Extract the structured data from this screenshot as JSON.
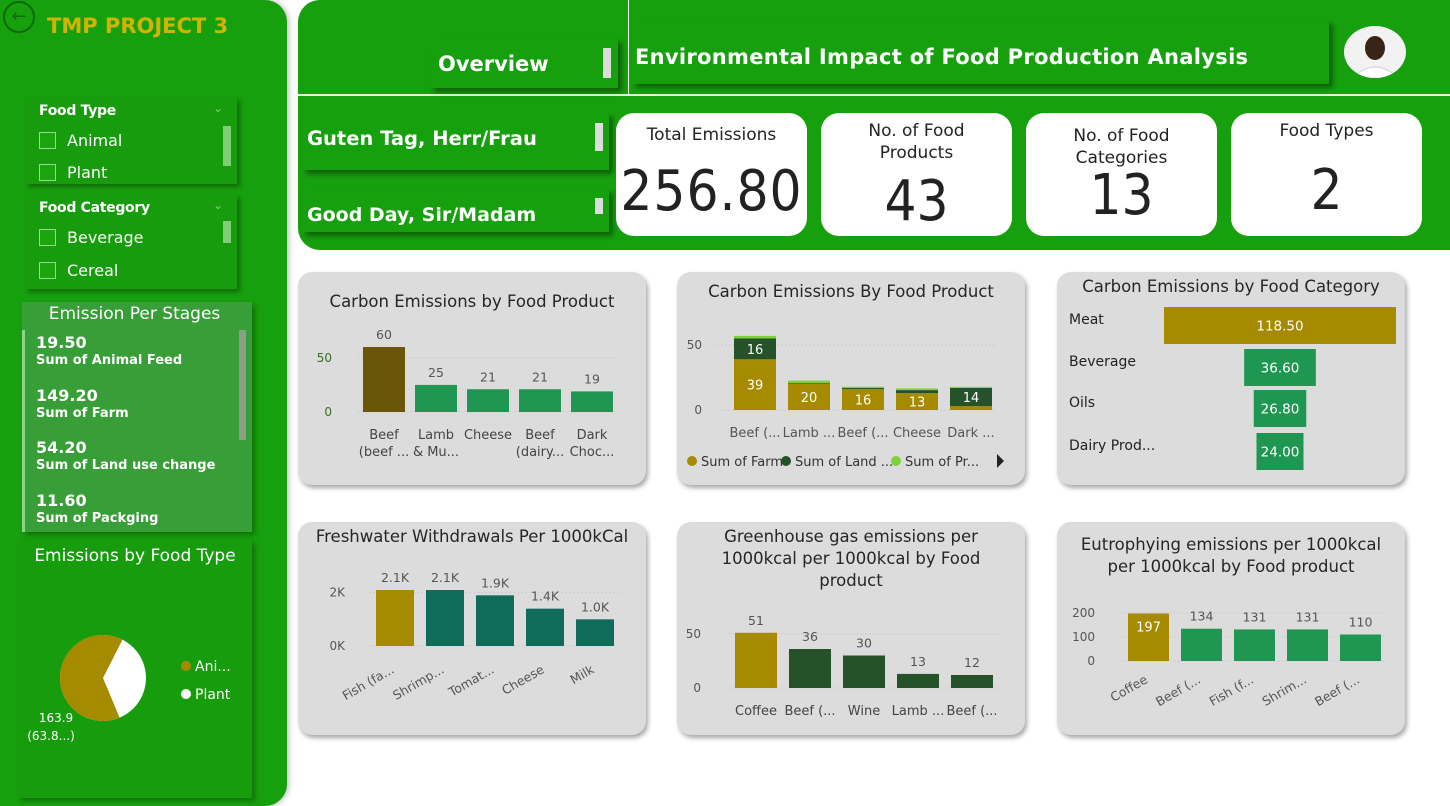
{
  "sidebar": {
    "project_title": "TMP PROJECT 3",
    "back_icon": "back-arrow-icon",
    "food_type_slicer": {
      "title": "Food Type",
      "options": [
        "Animal",
        "Plant"
      ]
    },
    "food_category_slicer": {
      "title": "Food Category",
      "options": [
        "Beverage",
        "Cereal"
      ]
    },
    "stages": {
      "title": "Emission Per Stages",
      "items": [
        {
          "value": "19.50",
          "label": "Sum of Animal Feed"
        },
        {
          "value": "149.20",
          "label": "Sum of Farm"
        },
        {
          "value": "54.20",
          "label": "Sum of Land use change"
        },
        {
          "value": "11.60",
          "label": "Sum of Packging"
        }
      ]
    },
    "pie": {
      "title": "Emissions by Food Type",
      "legend": [
        "Ani...",
        "Plant"
      ],
      "label_value": "163.9",
      "label_pct": "(63.8...)",
      "animal_fraction": 0.638
    }
  },
  "header": {
    "overview": "Overview",
    "title": "Environmental Impact of Food Production Analysis",
    "greeting_de": "Guten Tag, Herr/Frau",
    "greeting_en": "Good Day, Sir/Madam"
  },
  "kpis": [
    {
      "label": "Total Emissions",
      "value": "256.80"
    },
    {
      "label": "No. of Food Products",
      "value": "43"
    },
    {
      "label": "No. of Food Categories",
      "value": "13"
    },
    {
      "label": "Food Types",
      "value": "2"
    }
  ],
  "colors": {
    "brand_green": "#17a00e",
    "gold": "#a68a00",
    "dark_green": "#26522a",
    "teal": "#0f6b5a",
    "mid_green": "#1f9651",
    "brown": "#6b5507",
    "lime": "#7fd13a"
  },
  "chart_data": [
    {
      "type": "bar",
      "title": "Carbon Emissions by Food Product",
      "categories": [
        [
          "Beef",
          "(beef ..."
        ],
        [
          "Lamb",
          "& Mu..."
        ],
        [
          "Cheese"
        ],
        [
          "Beef",
          "(dairy..."
        ],
        [
          "Dark",
          "Choc..."
        ]
      ],
      "values": [
        60,
        25,
        21,
        21,
        19
      ],
      "yticks": [
        "0",
        "50"
      ],
      "ylim": [
        0,
        60
      ]
    },
    {
      "type": "bar",
      "stacked": true,
      "title": "Carbon Emissions By Food Product",
      "categories": [
        "Beef (...",
        "Lamb ...",
        "Beef (...",
        "Cheese",
        "Dark ..."
      ],
      "series": [
        {
          "name": "Sum of Farm",
          "values": [
            39,
            20,
            16,
            13,
            3
          ]
        },
        {
          "name": "Sum of Land ...",
          "values": [
            16,
            0.6,
            0.9,
            2.3,
            14
          ]
        },
        {
          "name": "Sum of Pr...",
          "values": [
            2,
            2,
            1,
            1.3,
            0.8
          ]
        }
      ],
      "segment_labels": [
        [
          "39",
          "16",
          ""
        ],
        [
          "20",
          "",
          ""
        ],
        [
          "16",
          "",
          ""
        ],
        [
          "13",
          "",
          ""
        ],
        [
          "",
          "14",
          ""
        ]
      ],
      "yticks": [
        "0",
        "50"
      ],
      "ylim": [
        0,
        60
      ]
    },
    {
      "type": "bar",
      "orientation": "horizontal-funnel",
      "title": "Carbon Emissions by Food Category",
      "categories": [
        "Meat",
        "Beverage",
        "Oils",
        "Dairy Prod..."
      ],
      "values": [
        118.5,
        36.6,
        26.8,
        24.0
      ],
      "value_labels": [
        "118.50",
        "36.60",
        "26.80",
        "24.00"
      ]
    },
    {
      "type": "bar",
      "title": "Freshwater Withdrawals Per 1000kCal",
      "categories": [
        "Fish (fa...",
        "Shrimp...",
        "Tomat...",
        "Cheese",
        "Milk"
      ],
      "values": [
        2100,
        2100,
        1900,
        1400,
        1000
      ],
      "value_labels": [
        "2.1K",
        "2.1K",
        "1.9K",
        "1.4K",
        "1.0K"
      ],
      "yticks": [
        "0K",
        "2K"
      ],
      "ylim": [
        0,
        2400
      ]
    },
    {
      "type": "bar",
      "title": "Greenhouse gas emissions per 1000kcal per 1000kcal by Food product",
      "categories": [
        "Coffee",
        "Beef (...",
        "Wine",
        "Lamb ...",
        "Beef (..."
      ],
      "values": [
        51,
        36,
        30,
        13,
        12
      ],
      "yticks": [
        "0",
        "50"
      ],
      "ylim": [
        0,
        60
      ]
    },
    {
      "type": "bar",
      "title": "Eutrophying emissions per 1000kcal per 1000kcal by Food product",
      "categories": [
        "Coffee",
        "Beef (...",
        "Fish (f...",
        "Shrim...",
        "Beef (..."
      ],
      "values": [
        197,
        134,
        131,
        131,
        110
      ],
      "yticks": [
        "0",
        "100",
        "200"
      ],
      "ylim": [
        0,
        220
      ]
    }
  ]
}
